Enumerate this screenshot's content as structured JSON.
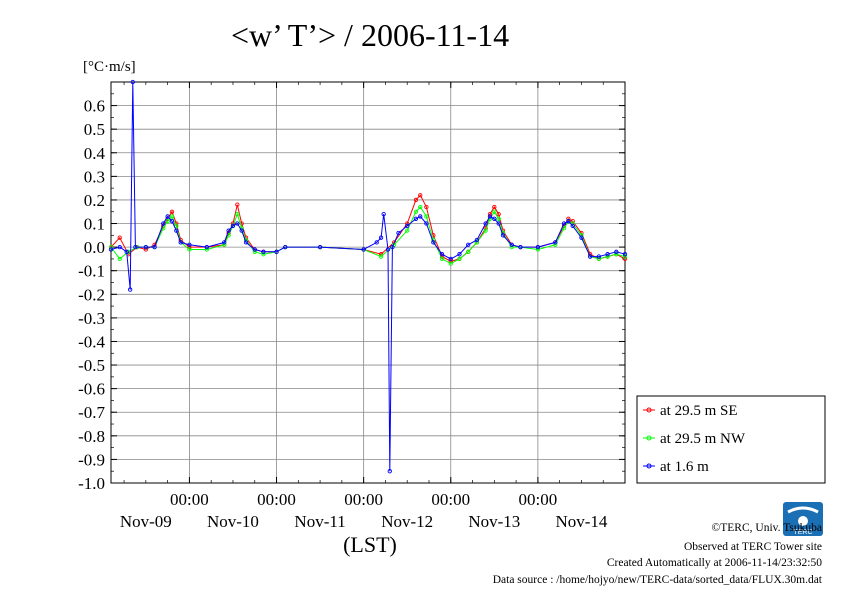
{
  "chart_data": {
    "type": "line",
    "title": "<w’ T’> / 2006-11-14",
    "ylabel": "[°C·m/s]",
    "xlabel": "(LST)",
    "ylim": [
      -1.0,
      0.7
    ],
    "yticks": [
      "0.6",
      "0.5",
      "0.4",
      "0.3",
      "0.2",
      "0.1",
      "0.0",
      "-0.1",
      "-0.2",
      "-0.3",
      "-0.4",
      "-0.5",
      "-0.6",
      "-0.7",
      "-0.8",
      "-0.9",
      "-1.0"
    ],
    "xlim": [
      -0.9,
      5.0
    ],
    "x_time_labels": [
      "00:00",
      "00:00",
      "00:00",
      "00:00",
      "00:00"
    ],
    "x_date_labels": [
      "Nov-09",
      "Nov-10",
      "Nov-11",
      "Nov-12",
      "Nov-13",
      "Nov-14"
    ],
    "grid": true,
    "legend_position": "right",
    "series": [
      {
        "name": "at 29.5 m SE",
        "color": "#ff0000",
        "points": [
          [
            -0.9,
            0.0
          ],
          [
            -0.8,
            0.04
          ],
          [
            -0.7,
            -0.03
          ],
          [
            -0.6,
            0.0
          ],
          [
            -0.5,
            -0.01
          ],
          [
            -0.4,
            0.01
          ],
          [
            -0.3,
            0.09
          ],
          [
            -0.25,
            0.12
          ],
          [
            -0.2,
            0.15
          ],
          [
            -0.15,
            0.1
          ],
          [
            -0.1,
            0.03
          ],
          [
            0.0,
            0.0
          ],
          [
            0.2,
            0.0
          ],
          [
            0.4,
            0.01
          ],
          [
            0.45,
            0.06
          ],
          [
            0.5,
            0.1
          ],
          [
            0.55,
            0.18
          ],
          [
            0.6,
            0.1
          ],
          [
            0.65,
            0.04
          ],
          [
            0.75,
            -0.01
          ],
          [
            0.85,
            -0.02
          ],
          [
            1.0,
            -0.02
          ],
          [
            1.1,
            0.0
          ],
          [
            1.5,
            0.0
          ],
          [
            2.0,
            -0.01
          ],
          [
            2.2,
            -0.03
          ],
          [
            2.35,
            0.02
          ],
          [
            2.5,
            0.1
          ],
          [
            2.6,
            0.2
          ],
          [
            2.65,
            0.22
          ],
          [
            2.72,
            0.17
          ],
          [
            2.8,
            0.05
          ],
          [
            2.9,
            -0.04
          ],
          [
            3.0,
            -0.06
          ],
          [
            3.1,
            -0.05
          ],
          [
            3.2,
            -0.02
          ],
          [
            3.3,
            0.02
          ],
          [
            3.4,
            0.08
          ],
          [
            3.45,
            0.14
          ],
          [
            3.5,
            0.17
          ],
          [
            3.55,
            0.14
          ],
          [
            3.6,
            0.07
          ],
          [
            3.7,
            0.01
          ],
          [
            3.8,
            0.0
          ],
          [
            4.0,
            0.0
          ],
          [
            4.2,
            0.02
          ],
          [
            4.3,
            0.09
          ],
          [
            4.35,
            0.12
          ],
          [
            4.4,
            0.11
          ],
          [
            4.5,
            0.06
          ],
          [
            4.6,
            -0.03
          ],
          [
            4.7,
            -0.05
          ],
          [
            4.8,
            -0.04
          ],
          [
            4.9,
            -0.03
          ],
          [
            5.0,
            -0.05
          ]
        ]
      },
      {
        "name": "at 29.5 m NW",
        "color": "#00ff00",
        "points": [
          [
            -0.9,
            0.0
          ],
          [
            -0.8,
            -0.05
          ],
          [
            -0.7,
            -0.02
          ],
          [
            -0.6,
            0.0
          ],
          [
            -0.5,
            0.0
          ],
          [
            -0.4,
            0.0
          ],
          [
            -0.3,
            0.08
          ],
          [
            -0.25,
            0.11
          ],
          [
            -0.2,
            0.13
          ],
          [
            -0.15,
            0.09
          ],
          [
            -0.1,
            0.02
          ],
          [
            0.0,
            -0.01
          ],
          [
            0.2,
            -0.01
          ],
          [
            0.4,
            0.01
          ],
          [
            0.45,
            0.05
          ],
          [
            0.5,
            0.09
          ],
          [
            0.55,
            0.14
          ],
          [
            0.6,
            0.08
          ],
          [
            0.65,
            0.03
          ],
          [
            0.75,
            -0.02
          ],
          [
            0.85,
            -0.03
          ],
          [
            1.0,
            -0.02
          ],
          [
            1.1,
            0.0
          ],
          [
            1.5,
            0.0
          ],
          [
            2.0,
            -0.01
          ],
          [
            2.2,
            -0.04
          ],
          [
            2.35,
            0.01
          ],
          [
            2.5,
            0.07
          ],
          [
            2.6,
            0.15
          ],
          [
            2.65,
            0.17
          ],
          [
            2.72,
            0.13
          ],
          [
            2.8,
            0.03
          ],
          [
            2.9,
            -0.05
          ],
          [
            3.0,
            -0.07
          ],
          [
            3.1,
            -0.05
          ],
          [
            3.2,
            -0.02
          ],
          [
            3.3,
            0.02
          ],
          [
            3.4,
            0.07
          ],
          [
            3.45,
            0.12
          ],
          [
            3.5,
            0.15
          ],
          [
            3.55,
            0.12
          ],
          [
            3.6,
            0.06
          ],
          [
            3.7,
            0.0
          ],
          [
            3.8,
            0.0
          ],
          [
            4.0,
            -0.01
          ],
          [
            4.2,
            0.01
          ],
          [
            4.3,
            0.08
          ],
          [
            4.35,
            0.11
          ],
          [
            4.4,
            0.1
          ],
          [
            4.5,
            0.05
          ],
          [
            4.6,
            -0.04
          ],
          [
            4.7,
            -0.05
          ],
          [
            4.8,
            -0.04
          ],
          [
            4.9,
            -0.03
          ],
          [
            5.0,
            -0.04
          ]
        ]
      },
      {
        "name": "at 1.6 m",
        "color": "#0000ff",
        "points": [
          [
            -0.9,
            -0.01
          ],
          [
            -0.8,
            0.0
          ],
          [
            -0.72,
            -0.02
          ],
          [
            -0.68,
            -0.18
          ],
          [
            -0.65,
            0.7
          ],
          [
            -0.62,
            0.0
          ],
          [
            -0.5,
            0.0
          ],
          [
            -0.4,
            0.0
          ],
          [
            -0.3,
            0.1
          ],
          [
            -0.25,
            0.13
          ],
          [
            -0.2,
            0.11
          ],
          [
            -0.15,
            0.07
          ],
          [
            -0.1,
            0.02
          ],
          [
            0.0,
            0.01
          ],
          [
            0.2,
            0.0
          ],
          [
            0.4,
            0.02
          ],
          [
            0.45,
            0.07
          ],
          [
            0.5,
            0.09
          ],
          [
            0.55,
            0.1
          ],
          [
            0.6,
            0.07
          ],
          [
            0.65,
            0.02
          ],
          [
            0.75,
            -0.01
          ],
          [
            0.85,
            -0.02
          ],
          [
            1.0,
            -0.02
          ],
          [
            1.1,
            0.0
          ],
          [
            1.5,
            0.0
          ],
          [
            2.0,
            -0.01
          ],
          [
            2.15,
            0.02
          ],
          [
            2.2,
            0.04
          ],
          [
            2.23,
            0.14
          ],
          [
            2.28,
            -0.01
          ],
          [
            2.3,
            -0.95
          ],
          [
            2.33,
            0.0
          ],
          [
            2.4,
            0.06
          ],
          [
            2.5,
            0.09
          ],
          [
            2.6,
            0.12
          ],
          [
            2.65,
            0.13
          ],
          [
            2.72,
            0.1
          ],
          [
            2.8,
            0.02
          ],
          [
            2.9,
            -0.03
          ],
          [
            3.0,
            -0.05
          ],
          [
            3.1,
            -0.03
          ],
          [
            3.2,
            0.01
          ],
          [
            3.3,
            0.03
          ],
          [
            3.4,
            0.1
          ],
          [
            3.45,
            0.13
          ],
          [
            3.5,
            0.12
          ],
          [
            3.55,
            0.1
          ],
          [
            3.6,
            0.05
          ],
          [
            3.7,
            0.01
          ],
          [
            3.8,
            0.0
          ],
          [
            4.0,
            0.0
          ],
          [
            4.2,
            0.02
          ],
          [
            4.3,
            0.1
          ],
          [
            4.35,
            0.11
          ],
          [
            4.4,
            0.09
          ],
          [
            4.5,
            0.04
          ],
          [
            4.6,
            -0.04
          ],
          [
            4.7,
            -0.04
          ],
          [
            4.8,
            -0.03
          ],
          [
            4.9,
            -0.02
          ],
          [
            5.0,
            -0.03
          ]
        ]
      }
    ]
  },
  "footer": {
    "copyright": "©TERC, Univ. Tsukuba",
    "observed": "Observed at TERC Tower site",
    "created": "Created Automatically at 2006-11-14/23:32:50",
    "source": "Data source : /home/hojyo/new/TERC-data/sorted_data/FLUX.30m.dat"
  },
  "logo": {
    "text": "TERC",
    "color": "#1a6fb5"
  }
}
